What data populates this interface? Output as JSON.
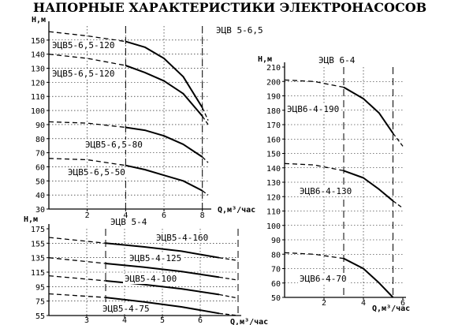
{
  "title": "НАПОРНЫЕ ХАРАКТЕРИСТИКИ ЭЛЕКТРОНАСОСОВ",
  "colors": {
    "ink": "#000000",
    "paper": "#ffffff"
  },
  "chart_data": [
    {
      "type": "line",
      "title": "ЭЦВ  5-6,5",
      "xlabel": "Q,м³/час",
      "ylabel": "Н,м",
      "xlim": [
        0,
        8.3
      ],
      "ylim": [
        30,
        160
      ],
      "xticks": [
        2,
        4,
        6,
        8
      ],
      "yticks": [
        30,
        40,
        50,
        60,
        70,
        80,
        90,
        100,
        110,
        120,
        130,
        140,
        150
      ],
      "working_range": [
        4,
        8
      ],
      "grid": true,
      "series": [
        {
          "name": "ЭЦВ5-6,5-120",
          "dashed": [
            [
              0,
              156
            ],
            [
              2,
              153
            ],
            [
              4,
              149
            ]
          ],
          "solid": [
            [
              4,
              149
            ],
            [
              5,
              145
            ],
            [
              6,
              137
            ],
            [
              7,
              124
            ],
            [
              8,
              102
            ]
          ],
          "dashed_end": [
            [
              8,
              102
            ],
            [
              8.3,
              93
            ]
          ]
        },
        {
          "name": "ЭЦВ5-6,5-120",
          "dashed": [
            [
              0,
              140
            ],
            [
              2,
              137
            ],
            [
              4,
              132
            ]
          ],
          "solid": [
            [
              4,
              132
            ],
            [
              5,
              127
            ],
            [
              6,
              121
            ],
            [
              7,
              112
            ],
            [
              8,
              96
            ]
          ],
          "dashed_end": [
            [
              8,
              96
            ],
            [
              8.3,
              90
            ]
          ]
        },
        {
          "name": "ЭЦВ5-6,5-80",
          "dashed": [
            [
              0,
              92
            ],
            [
              2,
              91
            ],
            [
              4,
              88
            ]
          ],
          "solid": [
            [
              4,
              88
            ],
            [
              5,
              86
            ],
            [
              6,
              82
            ],
            [
              7,
              76
            ],
            [
              8,
              67
            ]
          ],
          "dashed_end": [
            [
              8,
              67
            ],
            [
              8.3,
              63
            ]
          ]
        },
        {
          "name": "ЭЦВ5-6,5-50",
          "dashed": [
            [
              0,
              66
            ],
            [
              2,
              65
            ],
            [
              4,
              61
            ]
          ],
          "solid": [
            [
              4,
              61
            ],
            [
              5,
              58
            ],
            [
              6,
              54
            ],
            [
              7,
              50
            ],
            [
              8,
              43
            ]
          ],
          "dashed_end": [
            [
              8,
              43
            ],
            [
              8.3,
              40
            ]
          ]
        }
      ]
    },
    {
      "type": "line",
      "title": "ЭЦВ  6-4",
      "xlabel": "Q,м³/час",
      "ylabel": "Н,м",
      "xlim": [
        0,
        6
      ],
      "ylim": [
        50,
        210
      ],
      "xticks": [
        2,
        4,
        6
      ],
      "yticks": [
        50,
        60,
        70,
        80,
        90,
        100,
        110,
        120,
        130,
        140,
        150,
        160,
        170,
        180,
        190,
        200,
        210
      ],
      "working_range": [
        3,
        5.5
      ],
      "grid": true,
      "series": [
        {
          "name": "ЭЦВ6-4-190",
          "dashed": [
            [
              0,
              201
            ],
            [
              1.5,
              200
            ],
            [
              3,
              196
            ]
          ],
          "solid": [
            [
              3,
              196
            ],
            [
              4,
              188
            ],
            [
              4.8,
              178
            ],
            [
              5.5,
              164
            ]
          ],
          "dashed_end": [
            [
              5.5,
              164
            ],
            [
              6,
              155
            ]
          ]
        },
        {
          "name": "ЭЦВ6-4-130",
          "dashed": [
            [
              0,
              143
            ],
            [
              1.5,
              142
            ],
            [
              3,
              138
            ]
          ],
          "solid": [
            [
              3,
              138
            ],
            [
              4,
              133
            ],
            [
              4.8,
              125
            ],
            [
              5.5,
              117
            ]
          ],
          "dashed_end": [
            [
              5.5,
              117
            ],
            [
              6,
              112
            ]
          ]
        },
        {
          "name": "ЭЦВ6-4-70",
          "dashed": [
            [
              0,
              81
            ],
            [
              1.5,
              80
            ],
            [
              3,
              77
            ]
          ],
          "solid": [
            [
              3,
              77
            ],
            [
              4,
              70
            ],
            [
              4.8,
              60
            ],
            [
              5.5,
              50
            ]
          ],
          "dashed_end": []
        }
      ]
    },
    {
      "type": "line",
      "title": "ЭЦВ  5-4",
      "xlabel": "Q,м³/час",
      "ylabel": "Н,м",
      "xlim": [
        2,
        7
      ],
      "ylim": [
        55,
        175
      ],
      "xticks": [
        3,
        4,
        5,
        6
      ],
      "yticks": [
        55,
        75,
        95,
        115,
        135,
        155,
        175
      ],
      "working_range": [
        3.5,
        7
      ],
      "grid": true,
      "series": [
        {
          "name": "ЭЦВ5-4-160",
          "dashed": [
            [
              2,
              163
            ],
            [
              3.5,
              155
            ]
          ],
          "solid": [
            [
              3.5,
              155
            ],
            [
              4.5,
              150
            ],
            [
              5.5,
              144
            ],
            [
              6.5,
              135
            ]
          ],
          "dashed_end": [
            [
              6.5,
              135
            ],
            [
              7,
              131
            ]
          ]
        },
        {
          "name": "ЭЦВ5-4-125",
          "dashed": [
            [
              2,
              135
            ],
            [
              3.5,
              127
            ]
          ],
          "solid": [
            [
              3.5,
              127
            ],
            [
              4.5,
              122
            ],
            [
              5.5,
              116
            ],
            [
              6.5,
              108
            ]
          ],
          "dashed_end": [
            [
              6.5,
              108
            ],
            [
              7,
              104
            ]
          ]
        },
        {
          "name": "ЭЦВ5-4-100",
          "dashed": [
            [
              2,
              110
            ],
            [
              3.5,
              103
            ]
          ],
          "solid": [
            [
              3.5,
              103
            ],
            [
              4.5,
              98
            ],
            [
              5.5,
              92
            ],
            [
              6.5,
              84
            ]
          ],
          "dashed_end": [
            [
              6.5,
              84
            ],
            [
              7,
              79
            ]
          ]
        },
        {
          "name": "ЭЦВ5-4-75",
          "dashed": [
            [
              2,
              85
            ],
            [
              3.5,
              80
            ]
          ],
          "solid": [
            [
              3.5,
              80
            ],
            [
              4.5,
              74
            ],
            [
              5.5,
              67
            ],
            [
              6.5,
              58
            ]
          ],
          "dashed_end": [
            [
              6.5,
              58
            ],
            [
              7,
              55
            ]
          ]
        }
      ]
    }
  ]
}
